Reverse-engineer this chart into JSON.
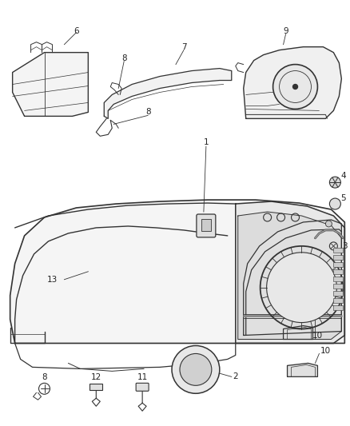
{
  "bg_color": "#ffffff",
  "line_color": "#333333",
  "fig_width": 4.38,
  "fig_height": 5.33,
  "dpi": 100,
  "label_fontsize": 7.5
}
